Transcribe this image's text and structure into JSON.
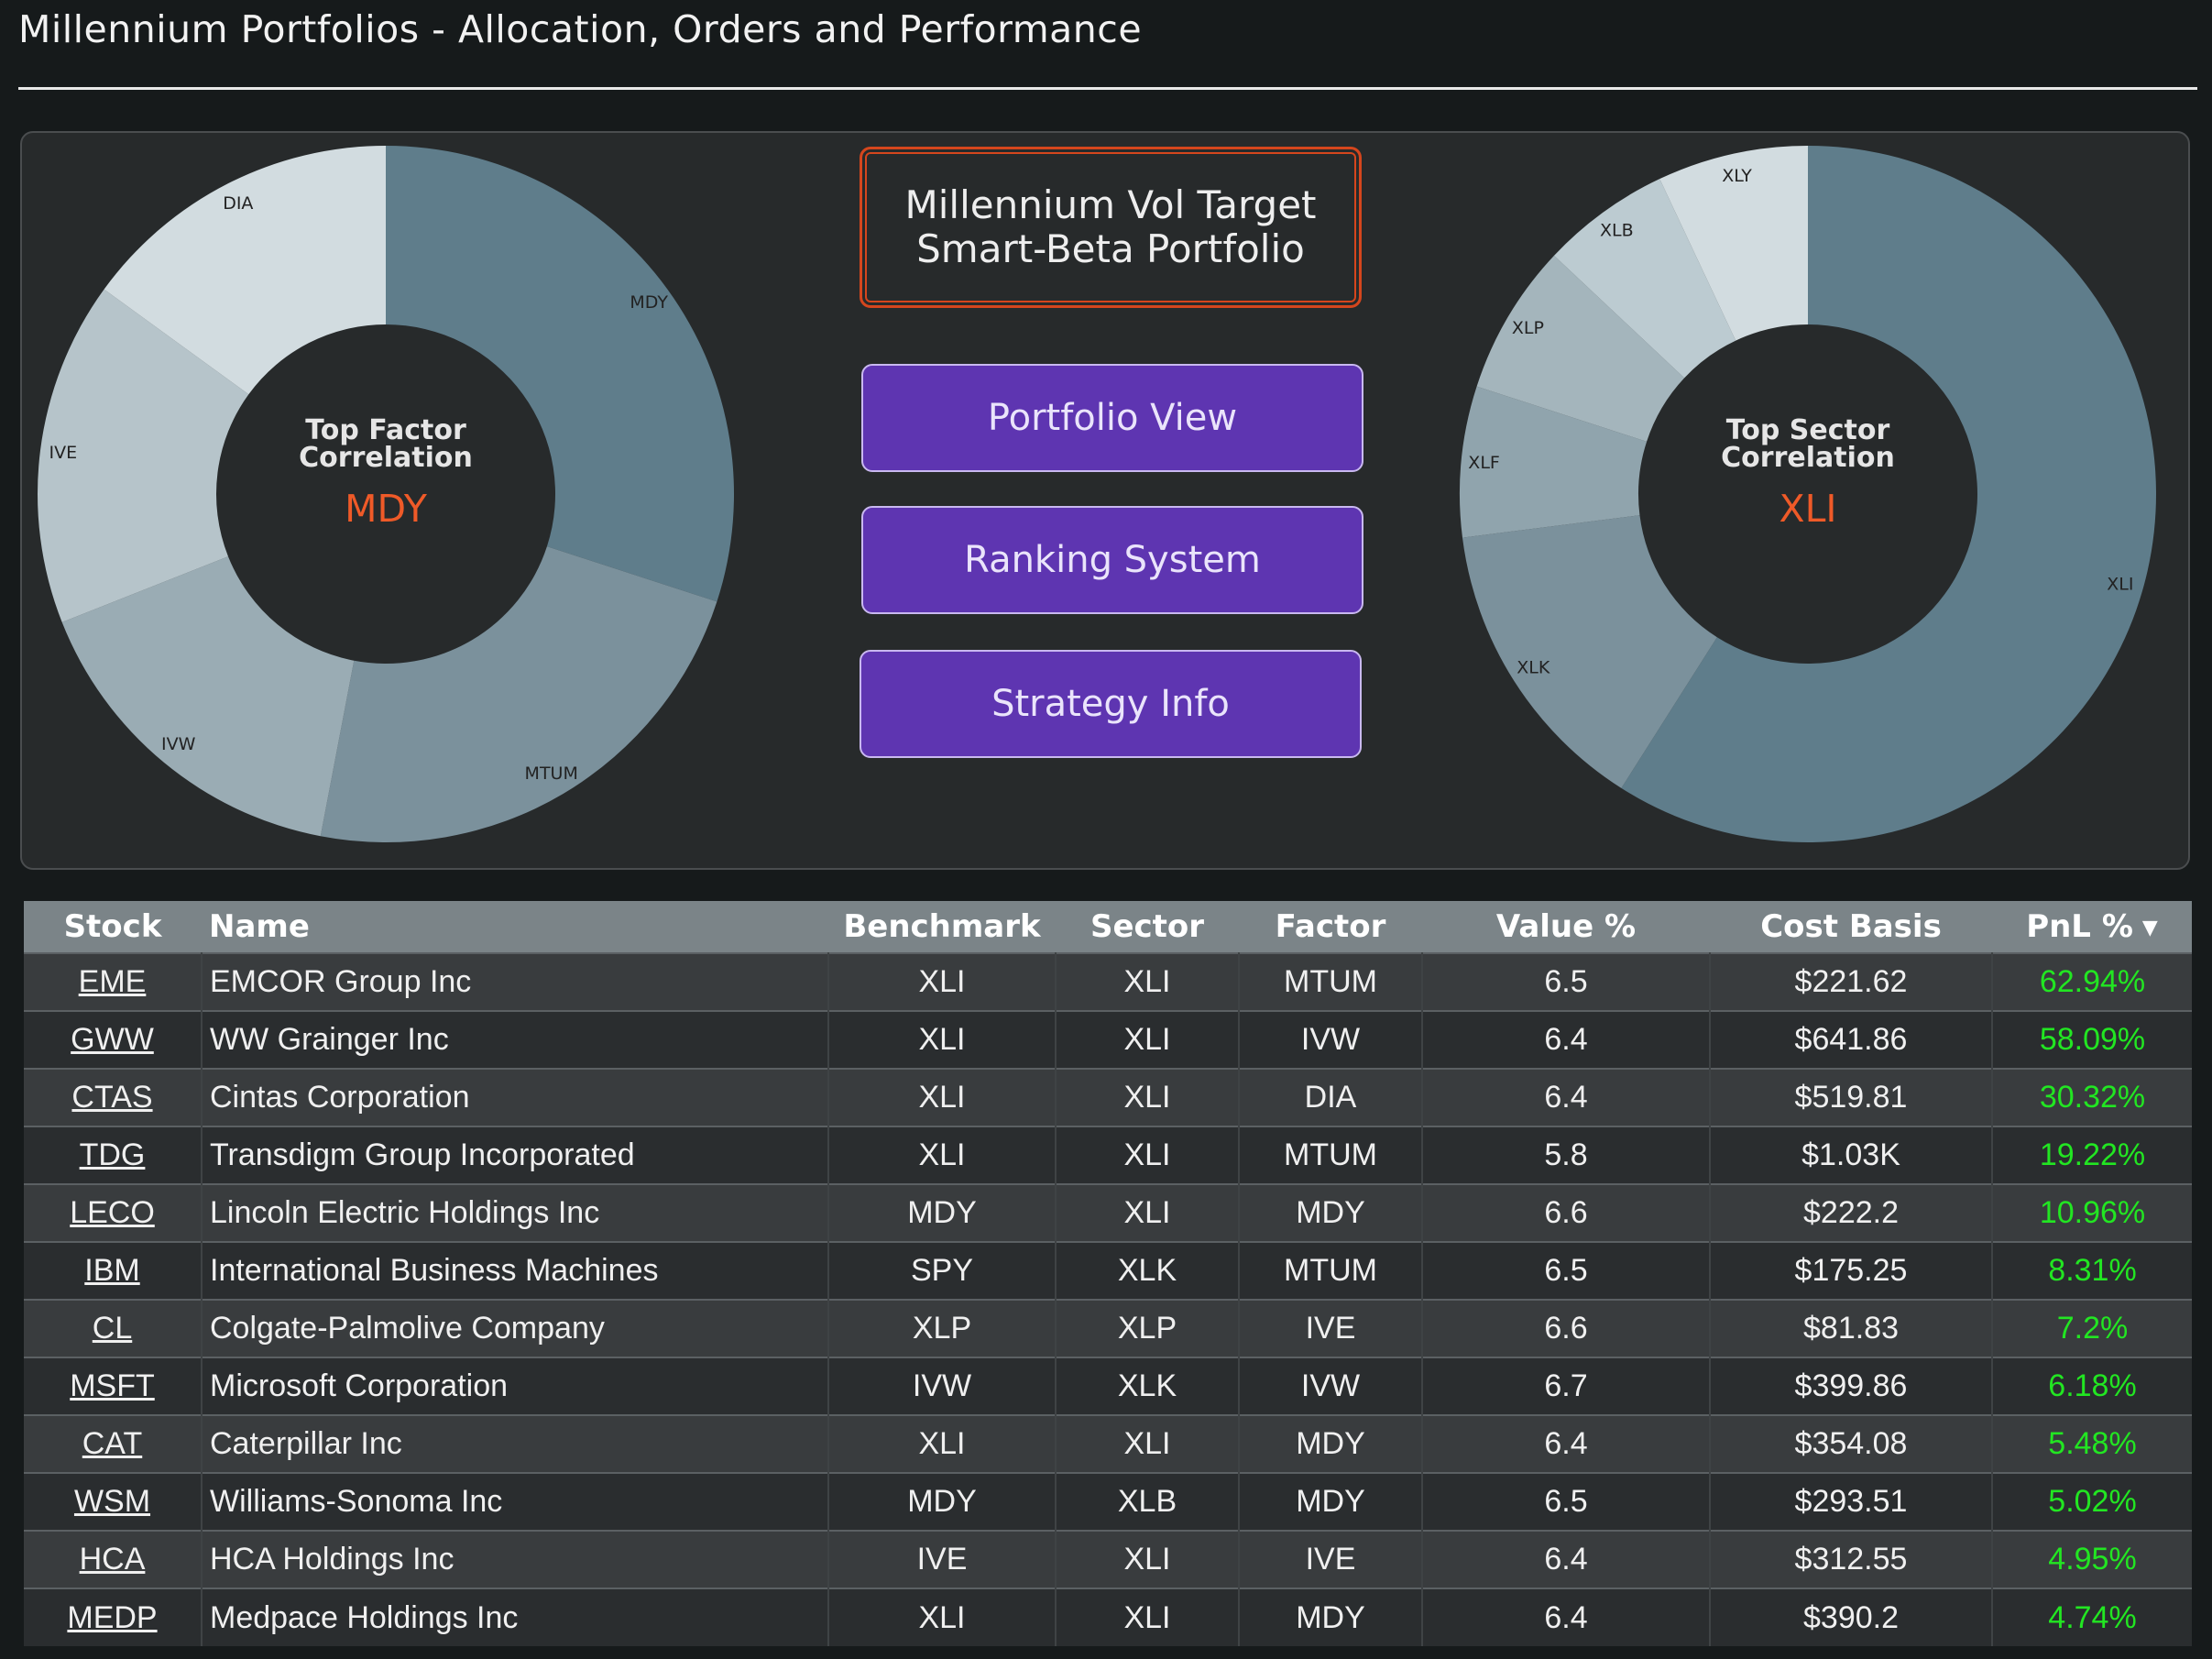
{
  "page": {
    "title": "Millennium Portfolios - Allocation, Orders and Performance"
  },
  "factor_donut": {
    "center_title_line1": "Top Factor",
    "center_title_line2": "Correlation",
    "center_value": "MDY",
    "slices": [
      {
        "label": "MDY",
        "share": 0.3,
        "color": "#5f7d8b"
      },
      {
        "label": "MTUM",
        "share": 0.23,
        "color": "#7b919c"
      },
      {
        "label": "IVW",
        "share": 0.16,
        "color": "#9aacb4"
      },
      {
        "label": "IVE",
        "share": 0.16,
        "color": "#b6c4ca"
      },
      {
        "label": "DIA",
        "share": 0.15,
        "color": "#d2dce0"
      }
    ]
  },
  "sector_donut": {
    "center_title_line1": "Top Sector",
    "center_title_line2": "Correlation",
    "center_value": "XLI",
    "slices": [
      {
        "label": "XLI",
        "share": 0.59,
        "color": "#5f7d8b"
      },
      {
        "label": "XLK",
        "share": 0.14,
        "color": "#7b919c"
      },
      {
        "label": "XLF",
        "share": 0.07,
        "color": "#90a4ad"
      },
      {
        "label": "XLP",
        "share": 0.07,
        "color": "#a4b5bc"
      },
      {
        "label": "XLB",
        "share": 0.06,
        "color": "#bccbd1"
      },
      {
        "label": "XLY",
        "share": 0.07,
        "color": "#d2dce0"
      }
    ]
  },
  "strategy": {
    "line1": "Millennium Vol Target",
    "line2": "Smart-Beta Portfolio"
  },
  "nav": {
    "portfolio_view": "Portfolio View",
    "ranking_system": "Ranking System",
    "strategy_info": "Strategy Info"
  },
  "table": {
    "headers": {
      "stock": "Stock",
      "name": "Name",
      "benchmark": "Benchmark",
      "sector": "Sector",
      "factor": "Factor",
      "value_pct": "Value %",
      "cost_basis": "Cost Basis",
      "pnl_pct": "PnL %"
    },
    "rows": [
      {
        "stock": "EME",
        "name": "EMCOR Group Inc",
        "benchmark": "XLI",
        "sector": "XLI",
        "factor": "MTUM",
        "value_pct": "6.5",
        "cost_basis": "$221.62",
        "pnl_pct": "62.94%"
      },
      {
        "stock": "GWW",
        "name": "WW Grainger Inc",
        "benchmark": "XLI",
        "sector": "XLI",
        "factor": "IVW",
        "value_pct": "6.4",
        "cost_basis": "$641.86",
        "pnl_pct": "58.09%"
      },
      {
        "stock": "CTAS",
        "name": "Cintas Corporation",
        "benchmark": "XLI",
        "sector": "XLI",
        "factor": "DIA",
        "value_pct": "6.4",
        "cost_basis": "$519.81",
        "pnl_pct": "30.32%"
      },
      {
        "stock": "TDG",
        "name": "Transdigm Group Incorporated",
        "benchmark": "XLI",
        "sector": "XLI",
        "factor": "MTUM",
        "value_pct": "5.8",
        "cost_basis": "$1.03K",
        "pnl_pct": "19.22%"
      },
      {
        "stock": "LECO",
        "name": "Lincoln Electric Holdings Inc",
        "benchmark": "MDY",
        "sector": "XLI",
        "factor": "MDY",
        "value_pct": "6.6",
        "cost_basis": "$222.2",
        "pnl_pct": "10.96%"
      },
      {
        "stock": "IBM",
        "name": "International Business Machines",
        "benchmark": "SPY",
        "sector": "XLK",
        "factor": "MTUM",
        "value_pct": "6.5",
        "cost_basis": "$175.25",
        "pnl_pct": "8.31%"
      },
      {
        "stock": "CL",
        "name": "Colgate-Palmolive Company",
        "benchmark": "XLP",
        "sector": "XLP",
        "factor": "IVE",
        "value_pct": "6.6",
        "cost_basis": "$81.83",
        "pnl_pct": "7.2%"
      },
      {
        "stock": "MSFT",
        "name": "Microsoft Corporation",
        "benchmark": "IVW",
        "sector": "XLK",
        "factor": "IVW",
        "value_pct": "6.7",
        "cost_basis": "$399.86",
        "pnl_pct": "6.18%"
      },
      {
        "stock": "CAT",
        "name": "Caterpillar Inc",
        "benchmark": "XLI",
        "sector": "XLI",
        "factor": "MDY",
        "value_pct": "6.4",
        "cost_basis": "$354.08",
        "pnl_pct": "5.48%"
      },
      {
        "stock": "WSM",
        "name": "Williams-Sonoma Inc",
        "benchmark": "MDY",
        "sector": "XLB",
        "factor": "MDY",
        "value_pct": "6.5",
        "cost_basis": "$293.51",
        "pnl_pct": "5.02%"
      },
      {
        "stock": "HCA",
        "name": "HCA Holdings Inc",
        "benchmark": "IVE",
        "sector": "XLI",
        "factor": "IVE",
        "value_pct": "6.4",
        "cost_basis": "$312.55",
        "pnl_pct": "4.95%"
      },
      {
        "stock": "MEDP",
        "name": "Medpace Holdings Inc",
        "benchmark": "XLI",
        "sector": "XLI",
        "factor": "MDY",
        "value_pct": "6.4",
        "cost_basis": "$390.2",
        "pnl_pct": "4.74%"
      }
    ]
  },
  "colors": {
    "accent": "#ef5a28",
    "button": "#5e35b1",
    "pnl_positive": "#22e622"
  }
}
